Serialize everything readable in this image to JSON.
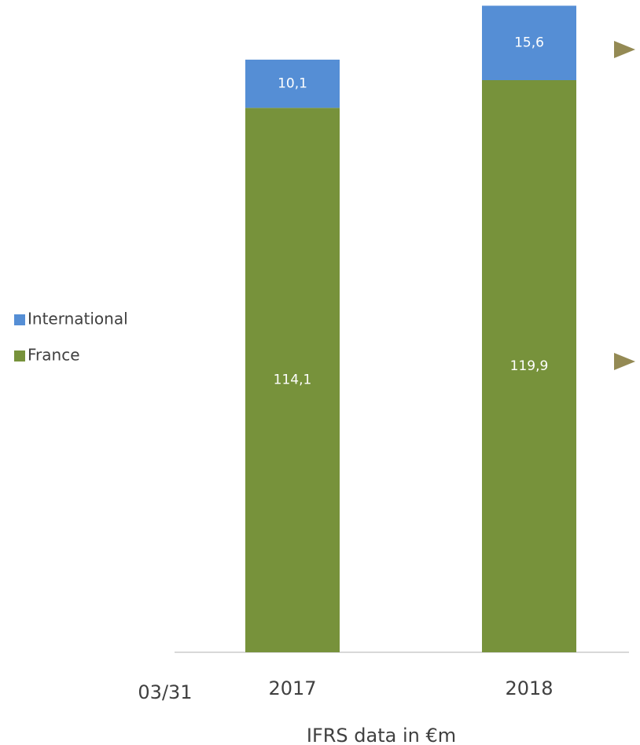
{
  "chart_data": {
    "type": "stacked_bar",
    "categories": [
      "2017",
      "2018"
    ],
    "series": [
      {
        "name": "France",
        "color": "#77923b",
        "values": [
          114.1,
          119.9
        ],
        "value_labels": [
          "114,1",
          "119,9"
        ]
      },
      {
        "name": "International",
        "color": "#558ed5",
        "values": [
          10.1,
          15.6
        ],
        "value_labels": [
          "10,1",
          "15,6"
        ]
      }
    ],
    "ylim": [
      0,
      136.7
    ],
    "annotation": "03/31",
    "x_label": "IFRS data in €m"
  }
}
